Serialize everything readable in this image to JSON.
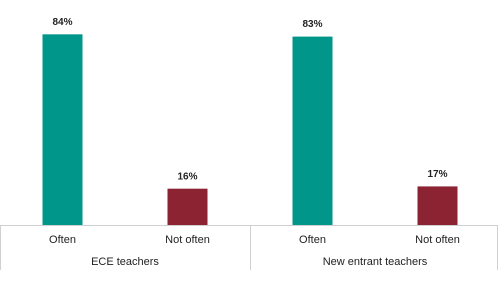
{
  "chart_data": {
    "type": "bar",
    "groups": [
      {
        "name": "ECE teachers",
        "categories": [
          "Often",
          "Not often"
        ],
        "values": [
          84,
          16
        ],
        "value_labels": [
          "84%",
          "16%"
        ]
      },
      {
        "name": "New entrant teachers",
        "categories": [
          "Often",
          "Not often"
        ],
        "values": [
          83,
          17
        ],
        "value_labels": [
          "83%",
          "17%"
        ]
      }
    ],
    "colors": [
      "#00968a",
      "#8b2332"
    ]
  }
}
